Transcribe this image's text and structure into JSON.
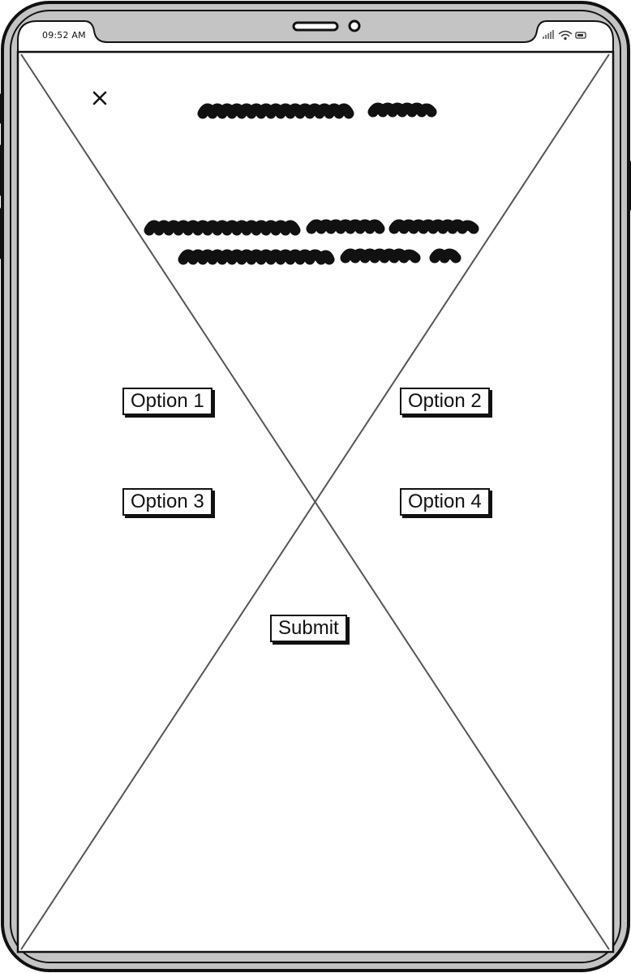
{
  "status_bar": {
    "time": "09:52 AM"
  },
  "header": {
    "close_icon": "close-icon",
    "title": ""
  },
  "prompt": {
    "text": ""
  },
  "options": [
    {
      "label": "Option 1"
    },
    {
      "label": "Option 2"
    },
    {
      "label": "Option 3"
    },
    {
      "label": "Option 4"
    }
  ],
  "submit": {
    "label": "Submit"
  },
  "colors": {
    "frame": "#111111",
    "bezel": "#c4c4c4",
    "screen": "#ffffff",
    "placeholder_cross": "#555555"
  }
}
